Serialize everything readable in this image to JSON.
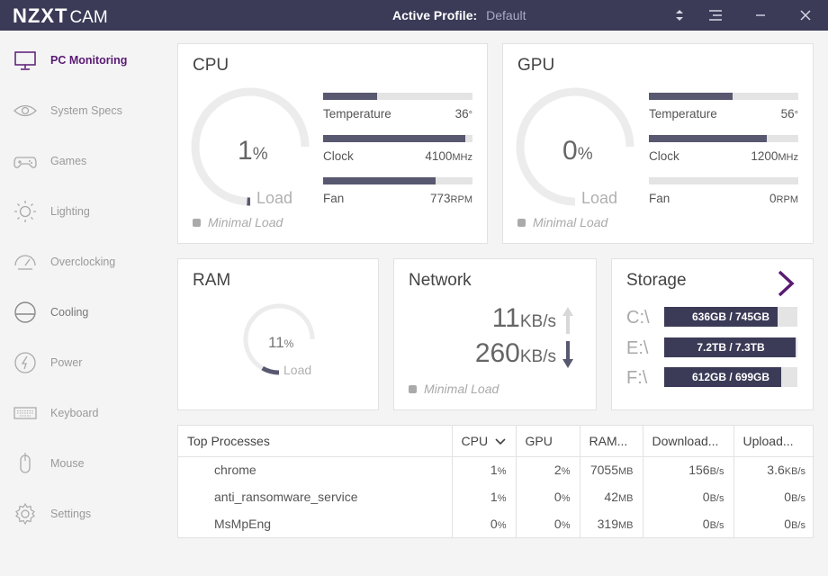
{
  "app": {
    "brand": "NZXT",
    "brand_suffix": "CAM",
    "profile_label": "Active Profile:",
    "profile_value": "Default"
  },
  "sidebar": {
    "items": [
      {
        "label": "PC Monitoring",
        "icon": "monitor-icon",
        "active": true
      },
      {
        "label": "System Specs",
        "icon": "eye-icon"
      },
      {
        "label": "Games",
        "icon": "gamepad-icon"
      },
      {
        "label": "Lighting",
        "icon": "sun-icon"
      },
      {
        "label": "Overclocking",
        "icon": "speedometer-icon"
      },
      {
        "label": "Cooling",
        "icon": "cooling-icon"
      },
      {
        "label": "Power",
        "icon": "bolt-icon"
      },
      {
        "label": "Keyboard",
        "icon": "keyboard-icon"
      },
      {
        "label": "Mouse",
        "icon": "mouse-icon"
      },
      {
        "label": "Settings",
        "icon": "gear-icon"
      }
    ]
  },
  "cpu": {
    "title": "CPU",
    "load_value": "1",
    "load_unit": "%",
    "load_label": "Load",
    "load_fraction": 0.01,
    "status": "Minimal Load",
    "temperature": {
      "label": "Temperature",
      "value": "36",
      "unit": "°",
      "fraction": 0.36
    },
    "clock": {
      "label": "Clock",
      "value": "4100",
      "unit": "MHz",
      "fraction": 0.95
    },
    "fan": {
      "label": "Fan",
      "value": "773",
      "unit": "RPM",
      "fraction": 0.75
    }
  },
  "gpu": {
    "title": "GPU",
    "load_value": "0",
    "load_unit": "%",
    "load_label": "Load",
    "load_fraction": 0.0,
    "status": "Minimal Load",
    "temperature": {
      "label": "Temperature",
      "value": "56",
      "unit": "°",
      "fraction": 0.56
    },
    "clock": {
      "label": "Clock",
      "value": "1200",
      "unit": "MHz",
      "fraction": 0.79
    },
    "fan": {
      "label": "Fan",
      "value": "0",
      "unit": "RPM",
      "fraction": 0.0
    }
  },
  "ram": {
    "title": "RAM",
    "load_value": "11",
    "load_unit": "%",
    "load_label": "Load",
    "load_fraction": 0.11
  },
  "network": {
    "title": "Network",
    "upload_value": "11",
    "upload_unit": "KB/s",
    "download_value": "260",
    "download_unit": "KB/s",
    "status": "Minimal Load"
  },
  "storage": {
    "title": "Storage",
    "drives": [
      {
        "letter": "C:\\",
        "usage": "636GB / 745GB",
        "fraction": 0.854
      },
      {
        "letter": "E:\\",
        "usage": "7.2TB / 7.3TB",
        "fraction": 0.986
      },
      {
        "letter": "F:\\",
        "usage": "612GB / 699GB",
        "fraction": 0.876
      }
    ]
  },
  "processes": {
    "columns": [
      "Top Processes",
      "CPU",
      "GPU",
      "RAM...",
      "Download...",
      "Upload..."
    ],
    "rows": [
      {
        "name": "chrome",
        "cpu": "1",
        "gpu": "2",
        "ram": "7055",
        "down": "156",
        "up": "3.6"
      },
      {
        "name": "anti_ransomware_service",
        "cpu": "1",
        "gpu": "0",
        "ram": "42",
        "down": "0",
        "up": "0"
      },
      {
        "name": "MsMpEng",
        "cpu": "0",
        "gpu": "0",
        "ram": "319",
        "down": "0",
        "up": "0"
      }
    ],
    "units": {
      "pct": "%",
      "ram": "MB",
      "down": "B/s",
      "up_first": "KB/s",
      "up": "B/s"
    }
  },
  "colors": {
    "accent": "#5a1a74",
    "titlebar": "#3b3b58",
    "bar": "#585870"
  }
}
